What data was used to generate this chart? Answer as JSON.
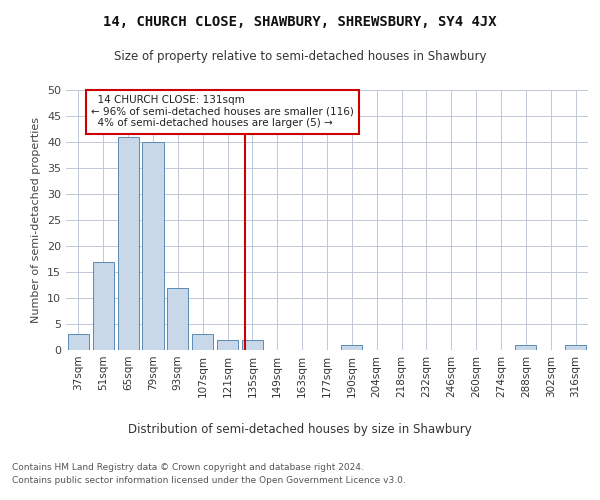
{
  "title": "14, CHURCH CLOSE, SHAWBURY, SHREWSBURY, SY4 4JX",
  "subtitle": "Size of property relative to semi-detached houses in Shawbury",
  "xlabel": "Distribution of semi-detached houses by size in Shawbury",
  "ylabel": "Number of semi-detached properties",
  "categories": [
    "37sqm",
    "51sqm",
    "65sqm",
    "79sqm",
    "93sqm",
    "107sqm",
    "121sqm",
    "135sqm",
    "149sqm",
    "163sqm",
    "177sqm",
    "190sqm",
    "204sqm",
    "218sqm",
    "232sqm",
    "246sqm",
    "260sqm",
    "274sqm",
    "288sqm",
    "302sqm",
    "316sqm"
  ],
  "values": [
    3,
    17,
    41,
    40,
    12,
    3,
    2,
    2,
    0,
    0,
    0,
    1,
    0,
    0,
    0,
    0,
    0,
    0,
    1,
    0,
    1
  ],
  "bar_color": "#c8d8e8",
  "bar_edge_color": "#5a8ab5",
  "property_line_label": "14 CHURCH CLOSE: 131sqm",
  "pct_smaller": 96,
  "pct_smaller_n": 116,
  "pct_larger": 4,
  "pct_larger_n": 5,
  "annotation_box_color": "#cc0000",
  "ylim": [
    0,
    50
  ],
  "yticks": [
    0,
    5,
    10,
    15,
    20,
    25,
    30,
    35,
    40,
    45,
    50
  ],
  "background_color": "#ffffff",
  "grid_color": "#c0c8d8",
  "footer_line1": "Contains HM Land Registry data © Crown copyright and database right 2024.",
  "footer_line2": "Contains public sector information licensed under the Open Government Licence v3.0."
}
